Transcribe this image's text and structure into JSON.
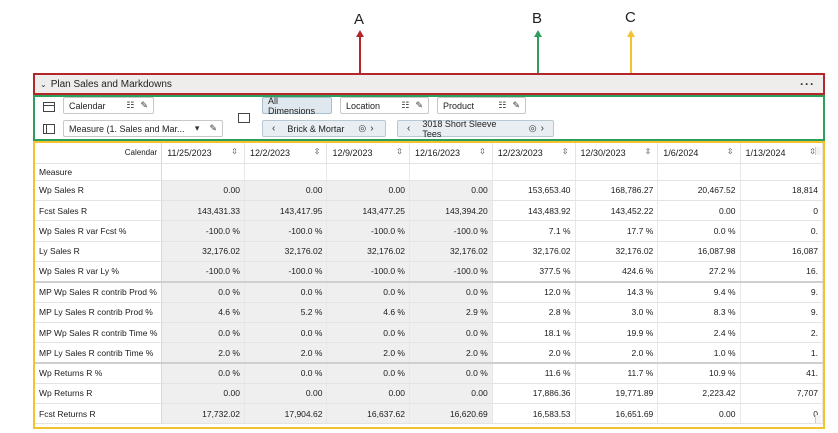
{
  "callouts": {
    "a": "A",
    "b": "B",
    "c": "C"
  },
  "colors": {
    "a": "#b3262a",
    "b": "#2e9e5d",
    "c": "#f2c230"
  },
  "panel": {
    "title": "Plan Sales and Markdowns",
    "more": "···",
    "collapse_icon": "chevron-down-icon"
  },
  "toolbar": {
    "calendar": "Calendar",
    "measure": "Measure (1. Sales and Mar...",
    "all_dimensions": "All Dimensions",
    "location": "Location",
    "product": "Product",
    "location_filter": "Brick & Mortar",
    "product_filter": "3018 Short Sleeve Tees"
  },
  "grid": {
    "calendar_label": "Calendar",
    "measure_label": "Measure",
    "columns": [
      "11/25/2023",
      "12/2/2023",
      "12/9/2023",
      "12/16/2023",
      "12/23/2023",
      "12/30/2023",
      "1/6/2024",
      "1/13/2024"
    ],
    "rows": [
      {
        "label": "Wp Sales R",
        "values": [
          "0.00",
          "0.00",
          "0.00",
          "0.00",
          "153,653.40",
          "168,786.27",
          "20,467.52",
          "18,814"
        ]
      },
      {
        "label": "Fcst Sales R",
        "values": [
          "143,431.33",
          "143,417.95",
          "143,477.25",
          "143,394.20",
          "143,483.92",
          "143,452.22",
          "0.00",
          "0"
        ]
      },
      {
        "label": "Wp Sales R var Fcst %",
        "values": [
          "-100.0 %",
          "-100.0 %",
          "-100.0 %",
          "-100.0 %",
          "7.1 %",
          "17.7 %",
          "0.0 %",
          "0."
        ]
      },
      {
        "label": "Ly Sales R",
        "values": [
          "32,176.02",
          "32,176.02",
          "32,176.02",
          "32,176.02",
          "32,176.02",
          "32,176.02",
          "16,087.98",
          "16,087"
        ]
      },
      {
        "label": "Wp Sales R var Ly %",
        "values": [
          "-100.0 %",
          "-100.0 %",
          "-100.0 %",
          "-100.0 %",
          "377.5 %",
          "424.6 %",
          "27.2 %",
          "16."
        ]
      },
      {
        "label": "MP Wp Sales R contrib Prod %",
        "values": [
          "0.0 %",
          "0.0 %",
          "0.0 %",
          "0.0 %",
          "12.0 %",
          "14.3 %",
          "9.4 %",
          "9."
        ]
      },
      {
        "label": "MP Ly Sales R contrib Prod %",
        "values": [
          "4.6 %",
          "5.2 %",
          "4.6 %",
          "2.9 %",
          "2.8 %",
          "3.0 %",
          "8.3 %",
          "9."
        ]
      },
      {
        "label": "MP Wp Sales R contrib Time %",
        "values": [
          "0.0 %",
          "0.0 %",
          "0.0 %",
          "0.0 %",
          "18.1 %",
          "19.9 %",
          "2.4 %",
          "2."
        ]
      },
      {
        "label": "MP Ly Sales R contrib Time %",
        "values": [
          "2.0 %",
          "2.0 %",
          "2.0 %",
          "2.0 %",
          "2.0 %",
          "2.0 %",
          "1.0 %",
          "1."
        ]
      },
      {
        "label": "Wp Returns R %",
        "values": [
          "0.0 %",
          "0.0 %",
          "0.0 %",
          "0.0 %",
          "11.6 %",
          "11.7 %",
          "10.9 %",
          "41."
        ]
      },
      {
        "label": "Wp Returns R",
        "values": [
          "0.00",
          "0.00",
          "0.00",
          "0.00",
          "17,886.36",
          "19,771.89",
          "2,223.42",
          "7,707"
        ]
      },
      {
        "label": "Fcst Returns R",
        "values": [
          "17,732.02",
          "17,904.62",
          "16,637.62",
          "16,620.69",
          "16,583.53",
          "16,651.69",
          "0.00",
          "0"
        ]
      }
    ]
  }
}
